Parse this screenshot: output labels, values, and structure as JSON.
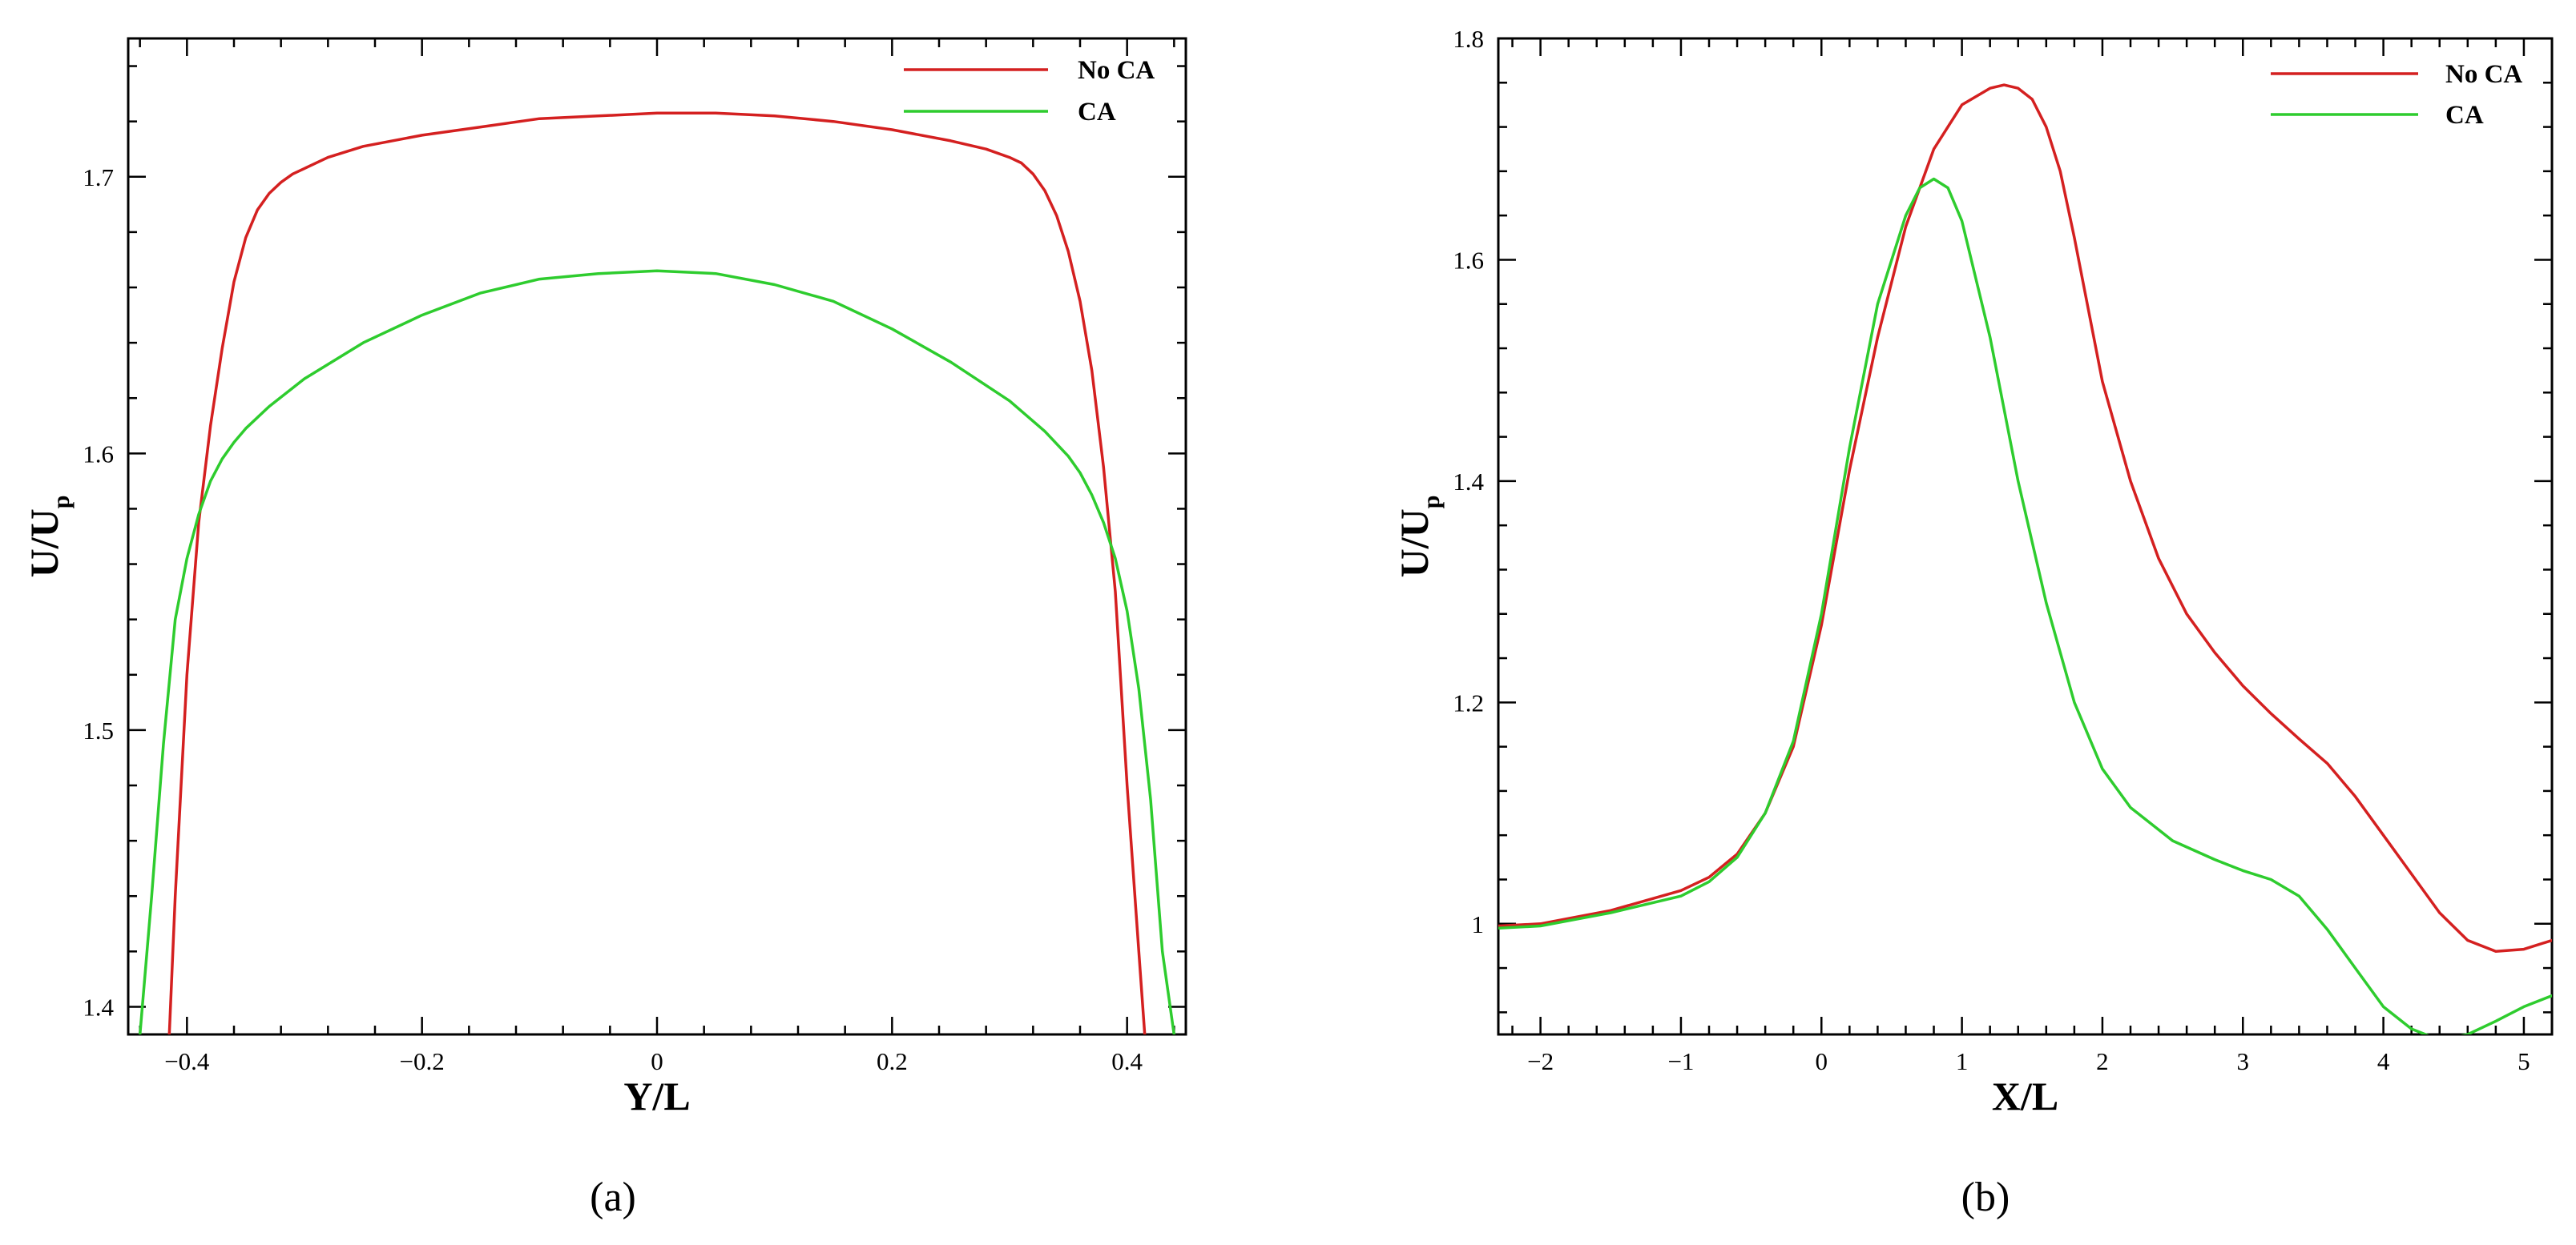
{
  "chart_data": [
    {
      "type": "line",
      "caption": "(a)",
      "xlabel": "Y/L",
      "ylabel_main": "U/U",
      "ylabel_sub": "p",
      "xlim": [
        -0.45,
        0.45
      ],
      "ylim": [
        1.39,
        1.75
      ],
      "xticks": [
        -0.4,
        -0.2,
        0,
        0.2,
        0.4
      ],
      "xtick_labels": [
        "−0.4",
        "−0.2",
        "0",
        "0.2",
        "0.4"
      ],
      "yticks": [
        1.4,
        1.5,
        1.6,
        1.7
      ],
      "ytick_labels": [
        "1.4",
        "1.5",
        "1.6",
        "1.7"
      ],
      "grid": false,
      "legend_position": "top-right",
      "series": [
        {
          "name": "No CA",
          "color": "#d42020",
          "x": [
            -0.415,
            -0.41,
            -0.4,
            -0.39,
            -0.38,
            -0.37,
            -0.36,
            -0.35,
            -0.34,
            -0.33,
            -0.32,
            -0.31,
            -0.3,
            -0.28,
            -0.25,
            -0.2,
            -0.15,
            -0.1,
            -0.05,
            0.0,
            0.05,
            0.1,
            0.15,
            0.2,
            0.25,
            0.28,
            0.3,
            0.31,
            0.32,
            0.33,
            0.34,
            0.35,
            0.36,
            0.37,
            0.38,
            0.39,
            0.4,
            0.41,
            0.415
          ],
          "y": [
            1.39,
            1.44,
            1.52,
            1.575,
            1.61,
            1.638,
            1.662,
            1.678,
            1.688,
            1.694,
            1.698,
            1.701,
            1.703,
            1.707,
            1.711,
            1.715,
            1.718,
            1.721,
            1.722,
            1.723,
            1.723,
            1.722,
            1.72,
            1.717,
            1.713,
            1.71,
            1.707,
            1.705,
            1.701,
            1.695,
            1.686,
            1.673,
            1.655,
            1.63,
            1.595,
            1.55,
            1.48,
            1.42,
            1.39
          ]
        },
        {
          "name": "CA",
          "color": "#2ecc2e",
          "x": [
            -0.44,
            -0.43,
            -0.42,
            -0.41,
            -0.4,
            -0.39,
            -0.38,
            -0.37,
            -0.36,
            -0.35,
            -0.33,
            -0.3,
            -0.25,
            -0.2,
            -0.15,
            -0.1,
            -0.05,
            0.0,
            0.05,
            0.1,
            0.15,
            0.2,
            0.25,
            0.3,
            0.33,
            0.35,
            0.36,
            0.37,
            0.38,
            0.39,
            0.4,
            0.41,
            0.42,
            0.43,
            0.44
          ],
          "y": [
            1.39,
            1.44,
            1.495,
            1.54,
            1.562,
            1.578,
            1.59,
            1.598,
            1.604,
            1.609,
            1.617,
            1.627,
            1.64,
            1.65,
            1.658,
            1.663,
            1.665,
            1.666,
            1.665,
            1.661,
            1.655,
            1.645,
            1.633,
            1.619,
            1.608,
            1.599,
            1.593,
            1.585,
            1.575,
            1.562,
            1.543,
            1.515,
            1.475,
            1.42,
            1.39
          ]
        }
      ]
    },
    {
      "type": "line",
      "caption": "(b)",
      "xlabel": "X/L",
      "ylabel_main": "U/U",
      "ylabel_sub": "p",
      "xlim": [
        -2.3,
        5.2
      ],
      "ylim": [
        0.9,
        1.8
      ],
      "xticks": [
        -2,
        -1,
        0,
        1,
        2,
        3,
        4,
        5
      ],
      "xtick_labels": [
        "−2",
        "−1",
        "0",
        "1",
        "2",
        "3",
        "4",
        "5"
      ],
      "yticks": [
        1.0,
        1.2,
        1.4,
        1.6,
        1.8
      ],
      "ytick_labels": [
        "1",
        "1.2",
        "1.4",
        "1.6",
        "1.8"
      ],
      "grid": false,
      "legend_position": "top-right",
      "series": [
        {
          "name": "No CA",
          "color": "#d42020",
          "x": [
            -2.3,
            -2.0,
            -1.5,
            -1.0,
            -0.8,
            -0.6,
            -0.4,
            -0.2,
            0.0,
            0.2,
            0.4,
            0.6,
            0.8,
            1.0,
            1.2,
            1.3,
            1.4,
            1.5,
            1.6,
            1.7,
            1.8,
            2.0,
            2.2,
            2.4,
            2.6,
            2.8,
            3.0,
            3.2,
            3.4,
            3.6,
            3.8,
            4.0,
            4.2,
            4.4,
            4.6,
            4.8,
            5.0,
            5.2
          ],
          "y": [
            0.998,
            1.0,
            1.012,
            1.03,
            1.042,
            1.063,
            1.1,
            1.16,
            1.27,
            1.41,
            1.53,
            1.63,
            1.7,
            1.74,
            1.755,
            1.758,
            1.755,
            1.745,
            1.72,
            1.68,
            1.62,
            1.49,
            1.4,
            1.33,
            1.28,
            1.245,
            1.215,
            1.19,
            1.167,
            1.145,
            1.115,
            1.08,
            1.045,
            1.01,
            0.985,
            0.975,
            0.977,
            0.985
          ]
        },
        {
          "name": "CA",
          "color": "#2ecc2e",
          "x": [
            -2.3,
            -2.0,
            -1.5,
            -1.0,
            -0.8,
            -0.6,
            -0.4,
            -0.2,
            0.0,
            0.2,
            0.4,
            0.6,
            0.7,
            0.8,
            0.9,
            1.0,
            1.2,
            1.4,
            1.6,
            1.8,
            2.0,
            2.2,
            2.5,
            2.8,
            3.0,
            3.2,
            3.4,
            3.6,
            3.8,
            4.0,
            4.2,
            4.4,
            4.6,
            4.8,
            5.0,
            5.2
          ],
          "y": [
            0.996,
            0.998,
            1.01,
            1.025,
            1.038,
            1.06,
            1.1,
            1.165,
            1.28,
            1.43,
            1.56,
            1.64,
            1.665,
            1.673,
            1.665,
            1.635,
            1.53,
            1.4,
            1.29,
            1.2,
            1.14,
            1.105,
            1.075,
            1.058,
            1.048,
            1.04,
            1.025,
            0.995,
            0.96,
            0.925,
            0.905,
            0.895,
            0.9,
            0.912,
            0.925,
            0.935
          ]
        }
      ]
    }
  ]
}
